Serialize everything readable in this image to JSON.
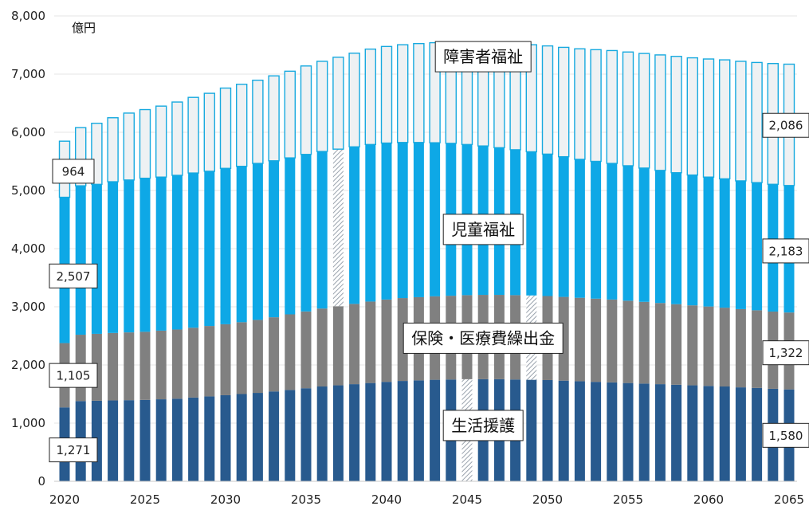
{
  "chart_data": {
    "type": "bar",
    "stacked": true,
    "unit_label": "億円",
    "ylim": [
      0,
      8000
    ],
    "y_ticks": [
      "0",
      "1,000",
      "2,000",
      "3,000",
      "4,000",
      "5,000",
      "6,000",
      "7,000",
      "8,000"
    ],
    "x_ticks": [
      "2020",
      "2025",
      "2030",
      "2035",
      "2040",
      "2045",
      "2050",
      "2055",
      "2060",
      "2065"
    ],
    "categories": [
      2020,
      2021,
      2022,
      2023,
      2024,
      2025,
      2026,
      2027,
      2028,
      2029,
      2030,
      2031,
      2032,
      2033,
      2034,
      2035,
      2036,
      2037,
      2038,
      2039,
      2040,
      2041,
      2042,
      2043,
      2044,
      2045,
      2046,
      2047,
      2048,
      2049,
      2050,
      2051,
      2052,
      2053,
      2054,
      2055,
      2056,
      2057,
      2058,
      2059,
      2060,
      2061,
      2062,
      2063,
      2064,
      2065
    ],
    "series": [
      {
        "name": "生活援護",
        "color": "#285a8e",
        "values": [
          1271,
          1380,
          1385,
          1390,
          1395,
          1400,
          1410,
          1420,
          1440,
          1460,
          1480,
          1500,
          1520,
          1545,
          1570,
          1600,
          1630,
          1650,
          1670,
          1690,
          1710,
          1725,
          1735,
          1745,
          1750,
          1755,
          1755,
          1755,
          1750,
          1745,
          1740,
          1730,
          1720,
          1710,
          1700,
          1690,
          1680,
          1670,
          1660,
          1650,
          1640,
          1630,
          1615,
          1605,
          1590,
          1580
        ]
      },
      {
        "name": "保険・医療費繰出金",
        "color": "#808080",
        "values": [
          1105,
          1140,
          1150,
          1160,
          1165,
          1170,
          1180,
          1190,
          1200,
          1210,
          1220,
          1235,
          1255,
          1275,
          1300,
          1320,
          1340,
          1360,
          1380,
          1400,
          1415,
          1425,
          1430,
          1435,
          1440,
          1445,
          1450,
          1450,
          1450,
          1450,
          1445,
          1440,
          1435,
          1430,
          1425,
          1415,
          1405,
          1395,
          1385,
          1375,
          1365,
          1355,
          1345,
          1335,
          1328,
          1322
        ]
      },
      {
        "name": "児童福祉",
        "color": "#0ea8e6",
        "values": [
          2507,
          2560,
          2570,
          2600,
          2620,
          2640,
          2640,
          2650,
          2660,
          2660,
          2680,
          2680,
          2690,
          2690,
          2690,
          2700,
          2700,
          2700,
          2700,
          2700,
          2690,
          2675,
          2660,
          2640,
          2620,
          2590,
          2560,
          2530,
          2500,
          2470,
          2440,
          2410,
          2380,
          2360,
          2340,
          2320,
          2300,
          2280,
          2260,
          2240,
          2225,
          2215,
          2205,
          2195,
          2188,
          2183
        ]
      },
      {
        "name": "障害者福祉",
        "color": "#eef1f3",
        "values": [
          964,
          1000,
          1050,
          1100,
          1150,
          1180,
          1220,
          1260,
          1300,
          1340,
          1380,
          1410,
          1430,
          1460,
          1490,
          1520,
          1550,
          1580,
          1610,
          1640,
          1660,
          1680,
          1700,
          1720,
          1740,
          1760,
          1780,
          1800,
          1820,
          1840,
          1860,
          1880,
          1900,
          1920,
          1940,
          1955,
          1970,
          1985,
          2000,
          2015,
          2030,
          2045,
          2055,
          2065,
          2076,
          2086
        ]
      }
    ],
    "hatched_bars": [
      {
        "year": 2037,
        "series": "児童福祉"
      },
      {
        "year": 2045,
        "series": "生活援護"
      },
      {
        "year": 2049,
        "series": "保険・医療費繰出金"
      }
    ],
    "category_labels": [
      {
        "text": "障害者福祉",
        "x_year": 2046,
        "y": 7300
      },
      {
        "text": "児童福祉",
        "x_year": 2046,
        "y": 4330
      },
      {
        "text": "保険・医療費繰出金",
        "x_year": 2046,
        "y": 2460
      },
      {
        "text": "生活援護",
        "x_year": 2046,
        "y": 960
      }
    ],
    "start_labels": [
      "964",
      "2,507",
      "1,105",
      "1,271"
    ],
    "end_labels": [
      "2,086",
      "2,183",
      "1,322",
      "1,580"
    ]
  }
}
